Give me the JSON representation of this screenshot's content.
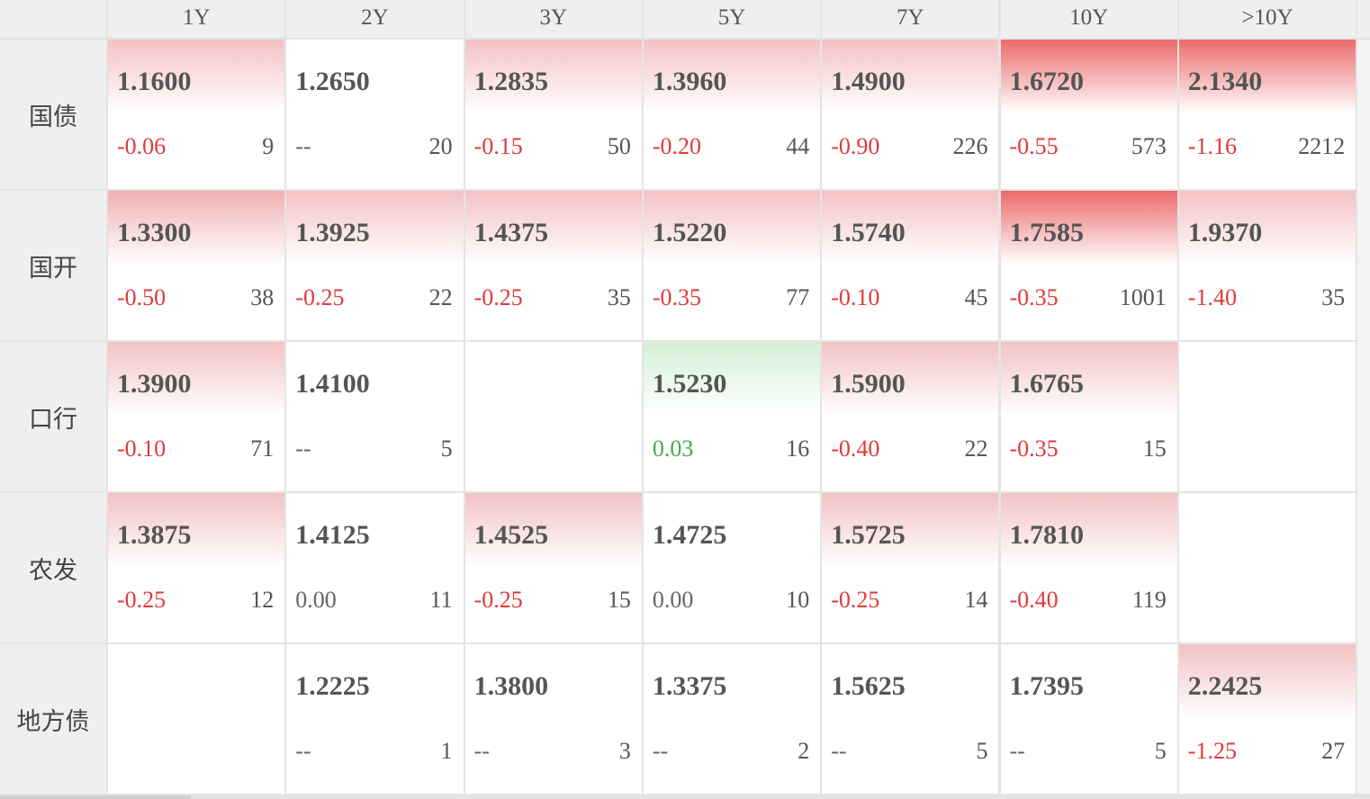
{
  "table": {
    "columns": [
      "1Y",
      "2Y",
      "3Y",
      "5Y",
      "7Y",
      "10Y",
      ">10Y"
    ],
    "rows": [
      {
        "label": "国债",
        "cells": [
          {
            "yield": "1.1600",
            "change": "-0.06",
            "volume": 9,
            "color": "#f3c2c4"
          },
          {
            "yield": "1.2650",
            "change": "--",
            "volume": 20,
            "color": "#ffffff"
          },
          {
            "yield": "1.2835",
            "change": "-0.15",
            "volume": 50,
            "color": "#f3c2c4"
          },
          {
            "yield": "1.3960",
            "change": "-0.20",
            "volume": 44,
            "color": "#f3c2c4"
          },
          {
            "yield": "1.4900",
            "change": "-0.90",
            "volume": 226,
            "color": "#f3c2c4"
          },
          {
            "yield": "1.6720",
            "change": "-0.55",
            "volume": 573,
            "color": "#ec6a6a"
          },
          {
            "yield": "2.1340",
            "change": "-1.16",
            "volume": 2212,
            "color": "#ec6a6a"
          }
        ]
      },
      {
        "label": "国开",
        "cells": [
          {
            "yield": "1.3300",
            "change": "-0.50",
            "volume": 38,
            "color": "#f0b0b2"
          },
          {
            "yield": "1.3925",
            "change": "-0.25",
            "volume": 22,
            "color": "#f3c2c4"
          },
          {
            "yield": "1.4375",
            "change": "-0.25",
            "volume": 35,
            "color": "#f3c2c4"
          },
          {
            "yield": "1.5220",
            "change": "-0.35",
            "volume": 77,
            "color": "#f3c2c4"
          },
          {
            "yield": "1.5740",
            "change": "-0.10",
            "volume": 45,
            "color": "#f3c2c4"
          },
          {
            "yield": "1.7585",
            "change": "-0.35",
            "volume": 1001,
            "color": "#ec6a6a"
          },
          {
            "yield": "1.9370",
            "change": "-1.40",
            "volume": 35,
            "color": "#f3c2c4"
          }
        ]
      },
      {
        "label": "口行",
        "cells": [
          {
            "yield": "1.3900",
            "change": "-0.10",
            "volume": 71,
            "color": "#f3c2c4"
          },
          {
            "yield": "1.4100",
            "change": "--",
            "volume": 5,
            "color": "#ffffff"
          },
          null,
          {
            "yield": "1.5230",
            "change": "0.03",
            "volume": 16,
            "color": "#d3f0d6"
          },
          {
            "yield": "1.5900",
            "change": "-0.40",
            "volume": 22,
            "color": "#f3c2c4"
          },
          {
            "yield": "1.6765",
            "change": "-0.35",
            "volume": 15,
            "color": "#f3c2c4"
          },
          null
        ]
      },
      {
        "label": "农发",
        "cells": [
          {
            "yield": "1.3875",
            "change": "-0.25",
            "volume": 12,
            "color": "#f3c2c4"
          },
          {
            "yield": "1.4125",
            "change": "0.00",
            "volume": 11,
            "color": "#ffffff"
          },
          {
            "yield": "1.4525",
            "change": "-0.25",
            "volume": 15,
            "color": "#f3c2c4"
          },
          {
            "yield": "1.4725",
            "change": "0.00",
            "volume": 10,
            "color": "#ffffff"
          },
          {
            "yield": "1.5725",
            "change": "-0.25",
            "volume": 14,
            "color": "#f3c2c4"
          },
          {
            "yield": "1.7810",
            "change": "-0.40",
            "volume": 119,
            "color": "#f3c2c4"
          },
          null
        ]
      },
      {
        "label": "地方债",
        "cells": [
          null,
          {
            "yield": "1.2225",
            "change": "--",
            "volume": 1,
            "color": "#ffffff"
          },
          {
            "yield": "1.3800",
            "change": "--",
            "volume": 3,
            "color": "#ffffff"
          },
          {
            "yield": "1.3375",
            "change": "--",
            "volume": 2,
            "color": "#ffffff"
          },
          {
            "yield": "1.5625",
            "change": "--",
            "volume": 5,
            "color": "#ffffff"
          },
          {
            "yield": "1.7395",
            "change": "--",
            "volume": 5,
            "color": "#ffffff"
          },
          {
            "yield": "2.2425",
            "change": "-1.25",
            "volume": 27,
            "color": "#f3c2c4"
          }
        ]
      }
    ]
  }
}
